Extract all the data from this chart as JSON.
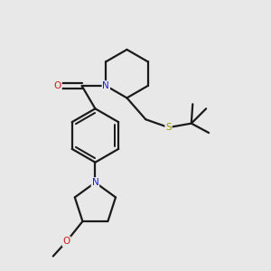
{
  "bg_color": "#e8e8e8",
  "bond_color": "#1a1a1a",
  "N_color": "#1a1acc",
  "O_color": "#cc1a1a",
  "S_color": "#999900",
  "line_width": 1.6,
  "fig_width": 3.0,
  "fig_height": 3.0,
  "dpi": 100,
  "xlim": [
    0,
    10
  ],
  "ylim": [
    0,
    10
  ]
}
